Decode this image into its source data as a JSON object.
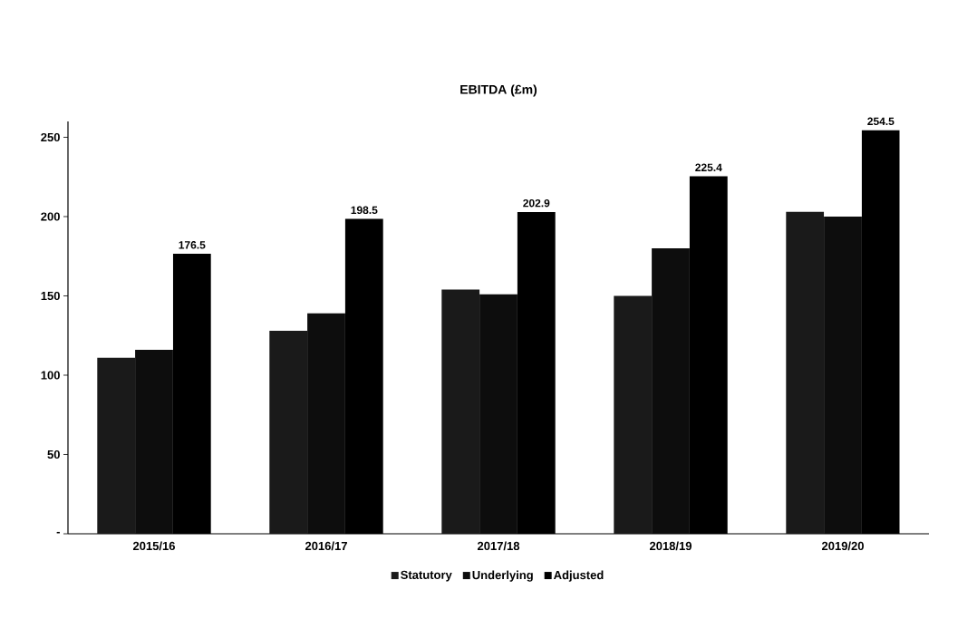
{
  "chart_data": {
    "type": "bar",
    "title": "EBITDA (£m)",
    "categories": [
      "2015/16",
      "2016/17",
      "2017/18",
      "2018/19",
      "2019/20"
    ],
    "series": [
      {
        "name": "Statutory",
        "color": "#1a1a1a",
        "values": [
          111,
          128,
          154,
          150,
          203
        ]
      },
      {
        "name": "Underlying",
        "color": "#0d0d0d",
        "values": [
          116,
          139,
          151,
          180,
          200
        ]
      },
      {
        "name": "Adjusted",
        "color": "#000000",
        "values": [
          176.5,
          198.5,
          202.9,
          225.4,
          254.5
        ],
        "value_labels": [
          "176.5",
          "198.5",
          "202.9",
          "225.4",
          "254.5"
        ]
      }
    ],
    "ylim": [
      0,
      260
    ],
    "yticks": [
      {
        "value": 0,
        "label": "-"
      },
      50,
      100,
      150,
      200,
      250
    ],
    "grid": false,
    "legend": "bottom"
  }
}
